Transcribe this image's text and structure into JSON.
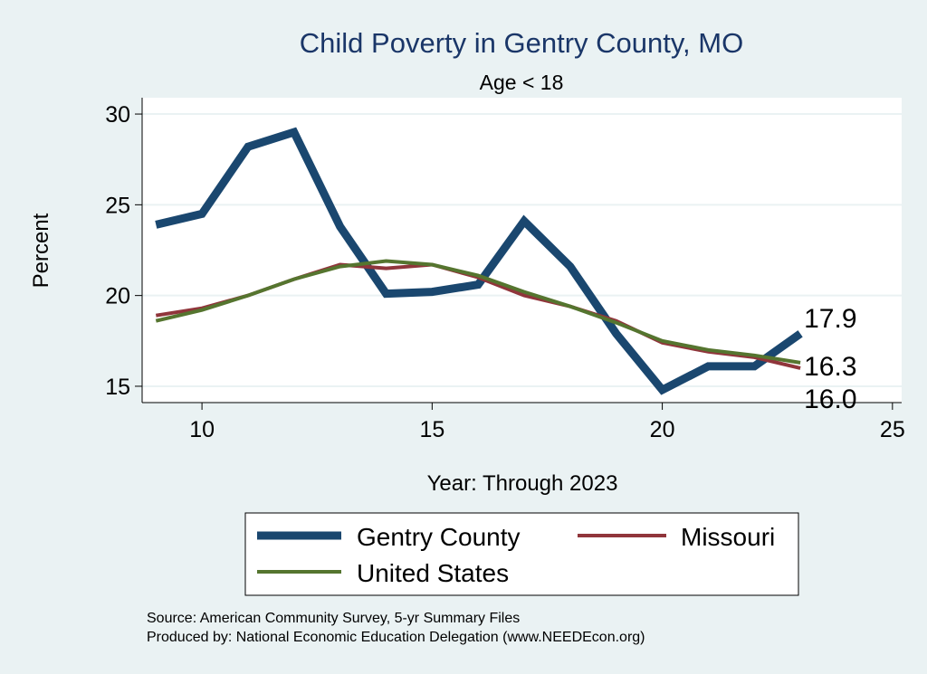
{
  "chart_data": {
    "type": "line",
    "title": "Child Poverty in Gentry County, MO",
    "subtitle": "Age < 18",
    "xlabel": "Year: Through 2023",
    "ylabel": "Percent",
    "xlim": [
      8.7,
      25.2
    ],
    "ylim": [
      14.1,
      30.9
    ],
    "xticks": [
      10,
      15,
      20,
      25
    ],
    "yticks": [
      15,
      20,
      25,
      30
    ],
    "x": [
      9,
      10,
      11,
      12,
      13,
      14,
      15,
      16,
      17,
      18,
      19,
      20,
      21,
      22,
      23
    ],
    "series": [
      {
        "name": "Gentry County",
        "color": "#1a476f",
        "width": 9,
        "values": [
          23.9,
          24.5,
          28.2,
          29.0,
          23.8,
          20.1,
          20.2,
          20.6,
          24.1,
          21.6,
          17.9,
          14.8,
          16.1,
          16.1,
          17.9
        ]
      },
      {
        "name": "Missouri",
        "color": "#90353b",
        "width": 4,
        "values": [
          18.9,
          19.3,
          20.0,
          20.9,
          21.7,
          21.5,
          21.7,
          21.0,
          20.0,
          19.4,
          18.6,
          17.4,
          16.9,
          16.6,
          16.0
        ]
      },
      {
        "name": "United States",
        "color": "#55752f",
        "width": 4,
        "values": [
          18.6,
          19.2,
          20.0,
          20.9,
          21.6,
          21.9,
          21.7,
          21.1,
          20.2,
          19.4,
          18.5,
          17.5,
          17.0,
          16.7,
          16.3
        ]
      }
    ],
    "end_labels": [
      "17.9",
      "16.3",
      "16.0"
    ],
    "grid": true,
    "legend_position": "bottom"
  },
  "source_lines": [
    "Source: American Community Survey, 5-yr Summary Files",
    "Produced by: National Economic Education Delegation (www.NEEDEcon.org)"
  ]
}
